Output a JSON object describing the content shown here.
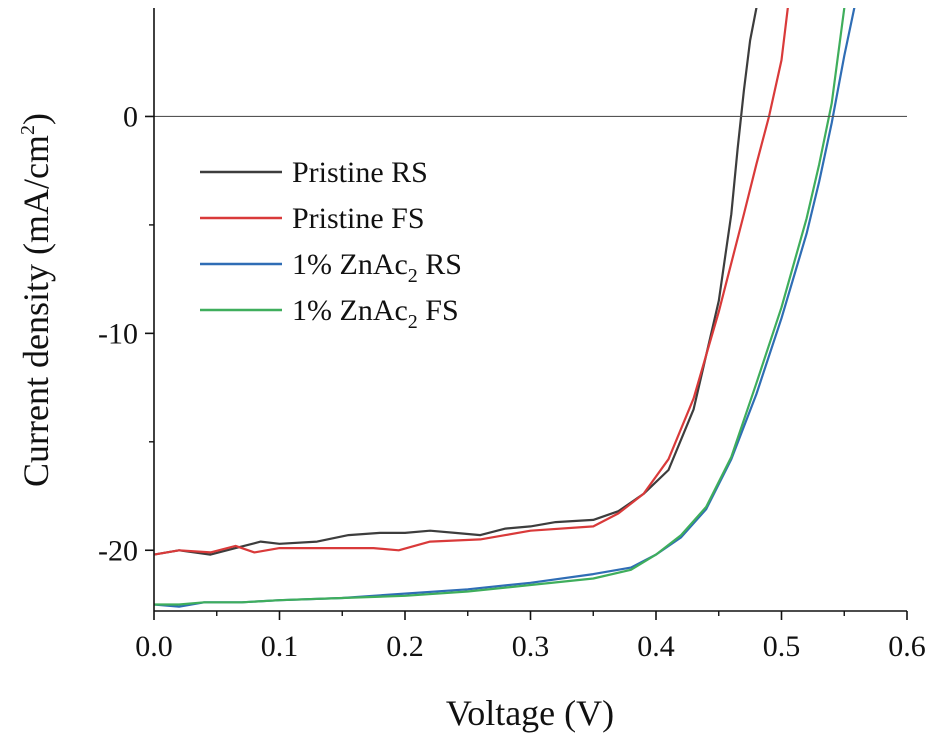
{
  "chart_data": {
    "type": "line",
    "title": "",
    "xlabel": "Voltage (V)",
    "ylabel": "Current density (mA/cm",
    "ylabel_sup": "2",
    "ylabel_close": ")",
    "xlim": [
      0.0,
      0.6
    ],
    "ylim": [
      -22.8,
      5
    ],
    "xticks": [
      0.0,
      0.1,
      0.2,
      0.3,
      0.4,
      0.5,
      0.6
    ],
    "xtick_labels": [
      "0.0",
      "0.1",
      "0.2",
      "0.3",
      "0.4",
      "0.5",
      "0.6"
    ],
    "yticks": [
      -20,
      -10,
      0
    ],
    "ytick_labels": [
      "-20",
      "-10",
      "0"
    ],
    "reference_line_y": 0,
    "grid": false,
    "legend_position": "upper-left",
    "colors": {
      "pristine_rs": "#3d3d3d",
      "pristine_fs": "#d93a3a",
      "zn_rs": "#2f6db5",
      "zn_fs": "#3fae5c",
      "axis": "#111111"
    },
    "series": [
      {
        "key": "pristine_rs",
        "name": "Pristine RS",
        "name_main": "Pristine RS",
        "name_sub": "",
        "name_tail": "",
        "x": [
          0.0,
          0.02,
          0.045,
          0.065,
          0.085,
          0.1,
          0.13,
          0.155,
          0.18,
          0.2,
          0.22,
          0.24,
          0.26,
          0.28,
          0.3,
          0.32,
          0.35,
          0.37,
          0.39,
          0.41,
          0.43,
          0.45,
          0.46,
          0.465,
          0.47,
          0.475,
          0.48
        ],
        "y": [
          -20.2,
          -20.0,
          -20.2,
          -19.9,
          -19.6,
          -19.7,
          -19.6,
          -19.3,
          -19.2,
          -19.2,
          -19.1,
          -19.2,
          -19.3,
          -19.0,
          -18.9,
          -18.7,
          -18.6,
          -18.2,
          -17.4,
          -16.3,
          -13.5,
          -8.5,
          -4.5,
          -1.5,
          1.2,
          3.5,
          5.0
        ]
      },
      {
        "key": "pristine_fs",
        "name": "Pristine FS",
        "name_main": "Pristine FS",
        "name_sub": "",
        "name_tail": "",
        "x": [
          0.0,
          0.02,
          0.045,
          0.065,
          0.08,
          0.1,
          0.13,
          0.155,
          0.175,
          0.195,
          0.22,
          0.26,
          0.28,
          0.3,
          0.35,
          0.37,
          0.39,
          0.41,
          0.43,
          0.45,
          0.47,
          0.48,
          0.49,
          0.5,
          0.505
        ],
        "y": [
          -20.2,
          -20.0,
          -20.1,
          -19.8,
          -20.1,
          -19.9,
          -19.9,
          -19.9,
          -19.9,
          -20.0,
          -19.6,
          -19.5,
          -19.3,
          -19.1,
          -18.9,
          -18.3,
          -17.4,
          -15.8,
          -13.0,
          -9.0,
          -4.5,
          -2.2,
          0.0,
          2.6,
          5.0
        ]
      },
      {
        "key": "zn_rs",
        "name": "1% ZnAc2 RS",
        "name_main": "1% ZnAc",
        "name_sub": "2",
        "name_tail": " RS",
        "x": [
          0.0,
          0.02,
          0.04,
          0.07,
          0.1,
          0.15,
          0.2,
          0.25,
          0.3,
          0.35,
          0.38,
          0.4,
          0.42,
          0.44,
          0.46,
          0.48,
          0.5,
          0.52,
          0.53,
          0.54,
          0.55,
          0.558
        ],
        "y": [
          -22.5,
          -22.6,
          -22.4,
          -22.4,
          -22.3,
          -22.2,
          -22.0,
          -21.8,
          -21.5,
          -21.1,
          -20.8,
          -20.2,
          -19.4,
          -18.1,
          -15.8,
          -12.8,
          -9.3,
          -5.4,
          -3.0,
          -0.3,
          2.8,
          5.0
        ]
      },
      {
        "key": "zn_fs",
        "name": "1% ZnAc2 FS",
        "name_main": "1% ZnAc",
        "name_sub": "2",
        "name_tail": " FS",
        "x": [
          0.0,
          0.02,
          0.04,
          0.07,
          0.1,
          0.15,
          0.2,
          0.25,
          0.3,
          0.35,
          0.38,
          0.4,
          0.42,
          0.44,
          0.46,
          0.48,
          0.5,
          0.52,
          0.53,
          0.54,
          0.55
        ],
        "y": [
          -22.5,
          -22.5,
          -22.4,
          -22.4,
          -22.3,
          -22.2,
          -22.1,
          -21.9,
          -21.6,
          -21.3,
          -20.9,
          -20.2,
          -19.3,
          -18.0,
          -15.7,
          -12.3,
          -8.8,
          -4.7,
          -2.2,
          0.6,
          5.0
        ]
      }
    ]
  }
}
